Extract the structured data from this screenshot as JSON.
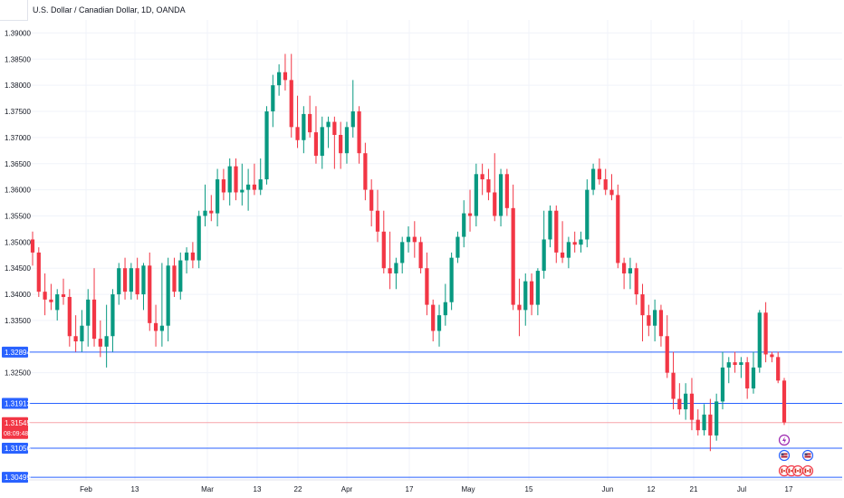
{
  "header": {
    "title": "U.S. Dollar / Canadian Dollar, 1D, OANDA"
  },
  "colors": {
    "up": "#089981",
    "down": "#f23645",
    "hline": "#2962ff",
    "last_price_line": "#f7a3aa",
    "grid": "#f0f3fa",
    "axis_text": "#131722"
  },
  "chart_data": {
    "type": "candlestick",
    "title": "U.S. Dollar / Canadian Dollar, 1D, OANDA",
    "ylim": [
      1.3045,
      1.3925
    ],
    "y_ticks": [
      "1.39000",
      "1.38500",
      "1.38000",
      "1.37500",
      "1.37000",
      "1.36500",
      "1.36000",
      "1.35500",
      "1.35000",
      "1.34500",
      "1.34000",
      "1.33500",
      "1.32500"
    ],
    "x_tick_labels": [
      "Feb",
      "13",
      "Mar",
      "13",
      "22",
      "Apr",
      "17",
      "May",
      "15",
      "Jun",
      "12",
      "21",
      "Jul",
      "17"
    ],
    "horizontal_lines": [
      {
        "label": "1.32894",
        "value": 1.32894
      },
      {
        "label": "1.31913",
        "value": 1.31913
      },
      {
        "label": "1.31056",
        "value": 1.31056
      },
      {
        "label": "1.30499",
        "value": 1.30499
      }
    ],
    "last_price": {
      "label": "1.31545",
      "value": 1.31545,
      "countdown": "08:09:48"
    },
    "candles": [
      [
        1.3505,
        1.352,
        1.3455,
        1.348
      ],
      [
        1.348,
        1.349,
        1.3395,
        1.3405
      ],
      [
        1.3405,
        1.344,
        1.336,
        1.339
      ],
      [
        1.339,
        1.342,
        1.337,
        1.3385
      ],
      [
        1.337,
        1.341,
        1.335,
        1.34
      ],
      [
        1.34,
        1.343,
        1.338,
        1.3395
      ],
      [
        1.3395,
        1.341,
        1.33,
        1.332
      ],
      [
        1.332,
        1.336,
        1.329,
        1.331
      ],
      [
        1.331,
        1.337,
        1.329,
        1.334
      ],
      [
        1.334,
        1.341,
        1.33,
        1.339
      ],
      [
        1.339,
        1.345,
        1.33,
        1.3315
      ],
      [
        1.3315,
        1.335,
        1.328,
        1.33
      ],
      [
        1.33,
        1.338,
        1.326,
        1.332
      ],
      [
        1.332,
        1.341,
        1.329,
        1.34
      ],
      [
        1.34,
        1.346,
        1.338,
        1.345
      ],
      [
        1.345,
        1.347,
        1.339,
        1.3405
      ],
      [
        1.3405,
        1.346,
        1.339,
        1.345
      ],
      [
        1.345,
        1.347,
        1.339,
        1.34
      ],
      [
        1.34,
        1.346,
        1.337,
        1.3455
      ],
      [
        1.3455,
        1.348,
        1.333,
        1.3345
      ],
      [
        1.3345,
        1.338,
        1.33,
        1.333
      ],
      [
        1.333,
        1.346,
        1.33,
        1.334
      ],
      [
        1.334,
        1.347,
        1.331,
        1.3455
      ],
      [
        1.3455,
        1.347,
        1.3395,
        1.3405
      ],
      [
        1.3405,
        1.348,
        1.339,
        1.3465
      ],
      [
        1.3465,
        1.349,
        1.344,
        1.348
      ],
      [
        1.348,
        1.35,
        1.345,
        1.3465
      ],
      [
        1.3465,
        1.356,
        1.345,
        1.355
      ],
      [
        1.355,
        1.361,
        1.353,
        1.356
      ],
      [
        1.356,
        1.359,
        1.354,
        1.3555
      ],
      [
        1.3555,
        1.364,
        1.353,
        1.362
      ],
      [
        1.362,
        1.364,
        1.358,
        1.3595
      ],
      [
        1.3595,
        1.366,
        1.357,
        1.3645
      ],
      [
        1.3645,
        1.366,
        1.358,
        1.3595
      ],
      [
        1.3595,
        1.365,
        1.357,
        1.36
      ],
      [
        1.36,
        1.364,
        1.356,
        1.361
      ],
      [
        1.361,
        1.365,
        1.359,
        1.36
      ],
      [
        1.36,
        1.366,
        1.359,
        1.362
      ],
      [
        1.362,
        1.376,
        1.361,
        1.375
      ],
      [
        1.375,
        1.382,
        1.372,
        1.38
      ],
      [
        1.38,
        1.384,
        1.378,
        1.3825
      ],
      [
        1.3825,
        1.386,
        1.379,
        1.381
      ],
      [
        1.381,
        1.386,
        1.37,
        1.372
      ],
      [
        1.372,
        1.378,
        1.368,
        1.3695
      ],
      [
        1.3695,
        1.376,
        1.367,
        1.3745
      ],
      [
        1.3745,
        1.378,
        1.37,
        1.371
      ],
      [
        1.371,
        1.376,
        1.365,
        1.3665
      ],
      [
        1.3665,
        1.374,
        1.364,
        1.372
      ],
      [
        1.372,
        1.374,
        1.368,
        1.373
      ],
      [
        1.373,
        1.374,
        1.364,
        1.3705
      ],
      [
        1.3705,
        1.373,
        1.364,
        1.367
      ],
      [
        1.367,
        1.373,
        1.365,
        1.372
      ],
      [
        1.372,
        1.381,
        1.37,
        1.375
      ],
      [
        1.375,
        1.376,
        1.365,
        1.367
      ],
      [
        1.367,
        1.369,
        1.358,
        1.36
      ],
      [
        1.36,
        1.362,
        1.353,
        1.356
      ],
      [
        1.356,
        1.36,
        1.35,
        1.352
      ],
      [
        1.352,
        1.356,
        1.344,
        1.345
      ],
      [
        1.345,
        1.352,
        1.341,
        1.344
      ],
      [
        1.344,
        1.347,
        1.341,
        1.346
      ],
      [
        1.346,
        1.351,
        1.344,
        1.35
      ],
      [
        1.35,
        1.353,
        1.348,
        1.351
      ],
      [
        1.351,
        1.354,
        1.347,
        1.35
      ],
      [
        1.35,
        1.351,
        1.344,
        1.345
      ],
      [
        1.345,
        1.348,
        1.336,
        1.338
      ],
      [
        1.338,
        1.339,
        1.331,
        1.333
      ],
      [
        1.333,
        1.338,
        1.33,
        1.336
      ],
      [
        1.336,
        1.342,
        1.334,
        1.3385
      ],
      [
        1.3385,
        1.348,
        1.337,
        1.347
      ],
      [
        1.347,
        1.352,
        1.346,
        1.351
      ],
      [
        1.351,
        1.358,
        1.349,
        1.3555
      ],
      [
        1.3555,
        1.36,
        1.352,
        1.355
      ],
      [
        1.355,
        1.365,
        1.353,
        1.363
      ],
      [
        1.363,
        1.365,
        1.359,
        1.362
      ],
      [
        1.362,
        1.364,
        1.358,
        1.3595
      ],
      [
        1.3595,
        1.367,
        1.354,
        1.355
      ],
      [
        1.355,
        1.364,
        1.353,
        1.363
      ],
      [
        1.363,
        1.364,
        1.355,
        1.3565
      ],
      [
        1.3565,
        1.361,
        1.337,
        1.338
      ],
      [
        1.338,
        1.343,
        1.332,
        1.337
      ],
      [
        1.337,
        1.344,
        1.334,
        1.3425
      ],
      [
        1.3425,
        1.344,
        1.336,
        1.338
      ],
      [
        1.338,
        1.345,
        1.336,
        1.3445
      ],
      [
        1.3445,
        1.356,
        1.343,
        1.3505
      ],
      [
        1.3505,
        1.357,
        1.349,
        1.356
      ],
      [
        1.356,
        1.357,
        1.346,
        1.348
      ],
      [
        1.348,
        1.354,
        1.346,
        1.347
      ],
      [
        1.347,
        1.351,
        1.345,
        1.35
      ],
      [
        1.35,
        1.352,
        1.348,
        1.3495
      ],
      [
        1.3495,
        1.352,
        1.348,
        1.3505
      ],
      [
        1.3505,
        1.362,
        1.349,
        1.36
      ],
      [
        1.36,
        1.365,
        1.359,
        1.364
      ],
      [
        1.364,
        1.366,
        1.361,
        1.362
      ],
      [
        1.362,
        1.364,
        1.359,
        1.36
      ],
      [
        1.36,
        1.363,
        1.358,
        1.359
      ],
      [
        1.359,
        1.361,
        1.345,
        1.346
      ],
      [
        1.346,
        1.347,
        1.341,
        1.344
      ],
      [
        1.344,
        1.347,
        1.341,
        1.345
      ],
      [
        1.345,
        1.346,
        1.338,
        1.34
      ],
      [
        1.34,
        1.342,
        1.331,
        1.336
      ],
      [
        1.336,
        1.338,
        1.332,
        1.334
      ],
      [
        1.334,
        1.339,
        1.331,
        1.337
      ],
      [
        1.337,
        1.338,
        1.33,
        1.332
      ],
      [
        1.332,
        1.336,
        1.324,
        1.325
      ],
      [
        1.325,
        1.329,
        1.318,
        1.32
      ],
      [
        1.32,
        1.323,
        1.317,
        1.318
      ],
      [
        1.318,
        1.323,
        1.316,
        1.321
      ],
      [
        1.321,
        1.324,
        1.314,
        1.316
      ],
      [
        1.316,
        1.318,
        1.313,
        1.314
      ],
      [
        1.314,
        1.319,
        1.313,
        1.317
      ],
      [
        1.317,
        1.32,
        1.31,
        1.313
      ],
      [
        1.313,
        1.321,
        1.312,
        1.3195
      ],
      [
        1.3195,
        1.329,
        1.318,
        1.326
      ],
      [
        1.326,
        1.328,
        1.323,
        1.327
      ],
      [
        1.327,
        1.329,
        1.325,
        1.3265
      ],
      [
        1.3265,
        1.328,
        1.324,
        1.327
      ],
      [
        1.327,
        1.328,
        1.32,
        1.322
      ],
      [
        1.322,
        1.329,
        1.321,
        1.326
      ],
      [
        1.326,
        1.337,
        1.325,
        1.3365
      ],
      [
        1.3365,
        1.3385,
        1.327,
        1.3285
      ],
      [
        1.3285,
        1.329,
        1.327,
        1.328
      ],
      [
        1.328,
        1.329,
        1.323,
        1.3235
      ],
      [
        1.3235,
        1.324,
        1.315,
        1.3155
      ]
    ]
  },
  "axis": {
    "countdown_label": "08:09:48"
  }
}
